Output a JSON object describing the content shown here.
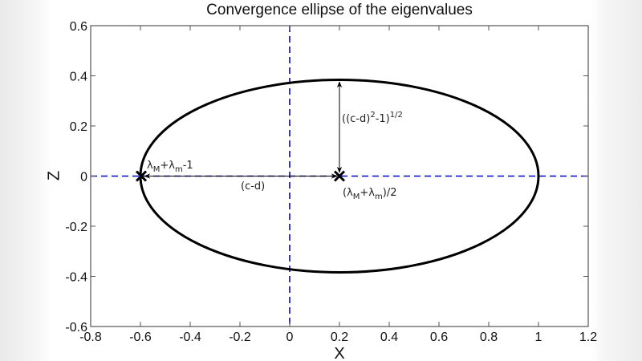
{
  "chart_data": {
    "type": "line",
    "title": "Convergence ellipse of the eigenvalues",
    "xlabel": "X",
    "ylabel": "Z",
    "xlim": [
      -0.8,
      1.2
    ],
    "ylim": [
      -0.6,
      0.6
    ],
    "xticks": [
      "-0.8",
      "-0.6",
      "-0.4",
      "-0.2",
      "0",
      "0.2",
      "0.4",
      "0.6",
      "0.8",
      "1",
      "1.2"
    ],
    "yticks": [
      "0.6",
      "0.4",
      "0.2",
      "0",
      "-0.2",
      "-0.4",
      "-0.6"
    ],
    "grid": false,
    "series": [
      {
        "name": "ellipse",
        "shape": "ellipse",
        "center": [
          0.2,
          0
        ],
        "semi_axis_x": 0.8,
        "semi_axis_z": 0.385,
        "color": "#000000"
      },
      {
        "name": "x-axis reference",
        "style": "dashed",
        "color": "#0000cc",
        "z": 0
      },
      {
        "name": "z-axis reference",
        "style": "dashed",
        "color": "#0000cc",
        "x": 0
      }
    ],
    "markers": [
      {
        "x": -0.6,
        "z": 0,
        "symbol": "x"
      },
      {
        "x": 0.2,
        "z": 0,
        "symbol": "x"
      }
    ],
    "annotations": [
      {
        "text": "λM+λm-1",
        "main": "λ",
        "sub1": "M",
        "mid": "+λ",
        "sub2": "m",
        "tail": "-1",
        "x": -0.6,
        "z": 0
      },
      {
        "text": "(c-d)",
        "label": "(c-d)",
        "from": [
          0.2,
          0
        ],
        "to": [
          -0.6,
          0
        ]
      },
      {
        "text": "((c-d)^2-1)^(1/2)",
        "pre": "((c-d)",
        "sup1": "2",
        "mid": "-1)",
        "sup2": "1/2",
        "from": [
          0.2,
          0
        ],
        "to": [
          0.2,
          0.385
        ]
      },
      {
        "text": "(λM+λm)/2",
        "pre": "(λ",
        "sub1": "M",
        "mid": "+λ",
        "sub2": "m",
        "tail": ")/2",
        "x": 0.2,
        "z": 0
      }
    ]
  }
}
